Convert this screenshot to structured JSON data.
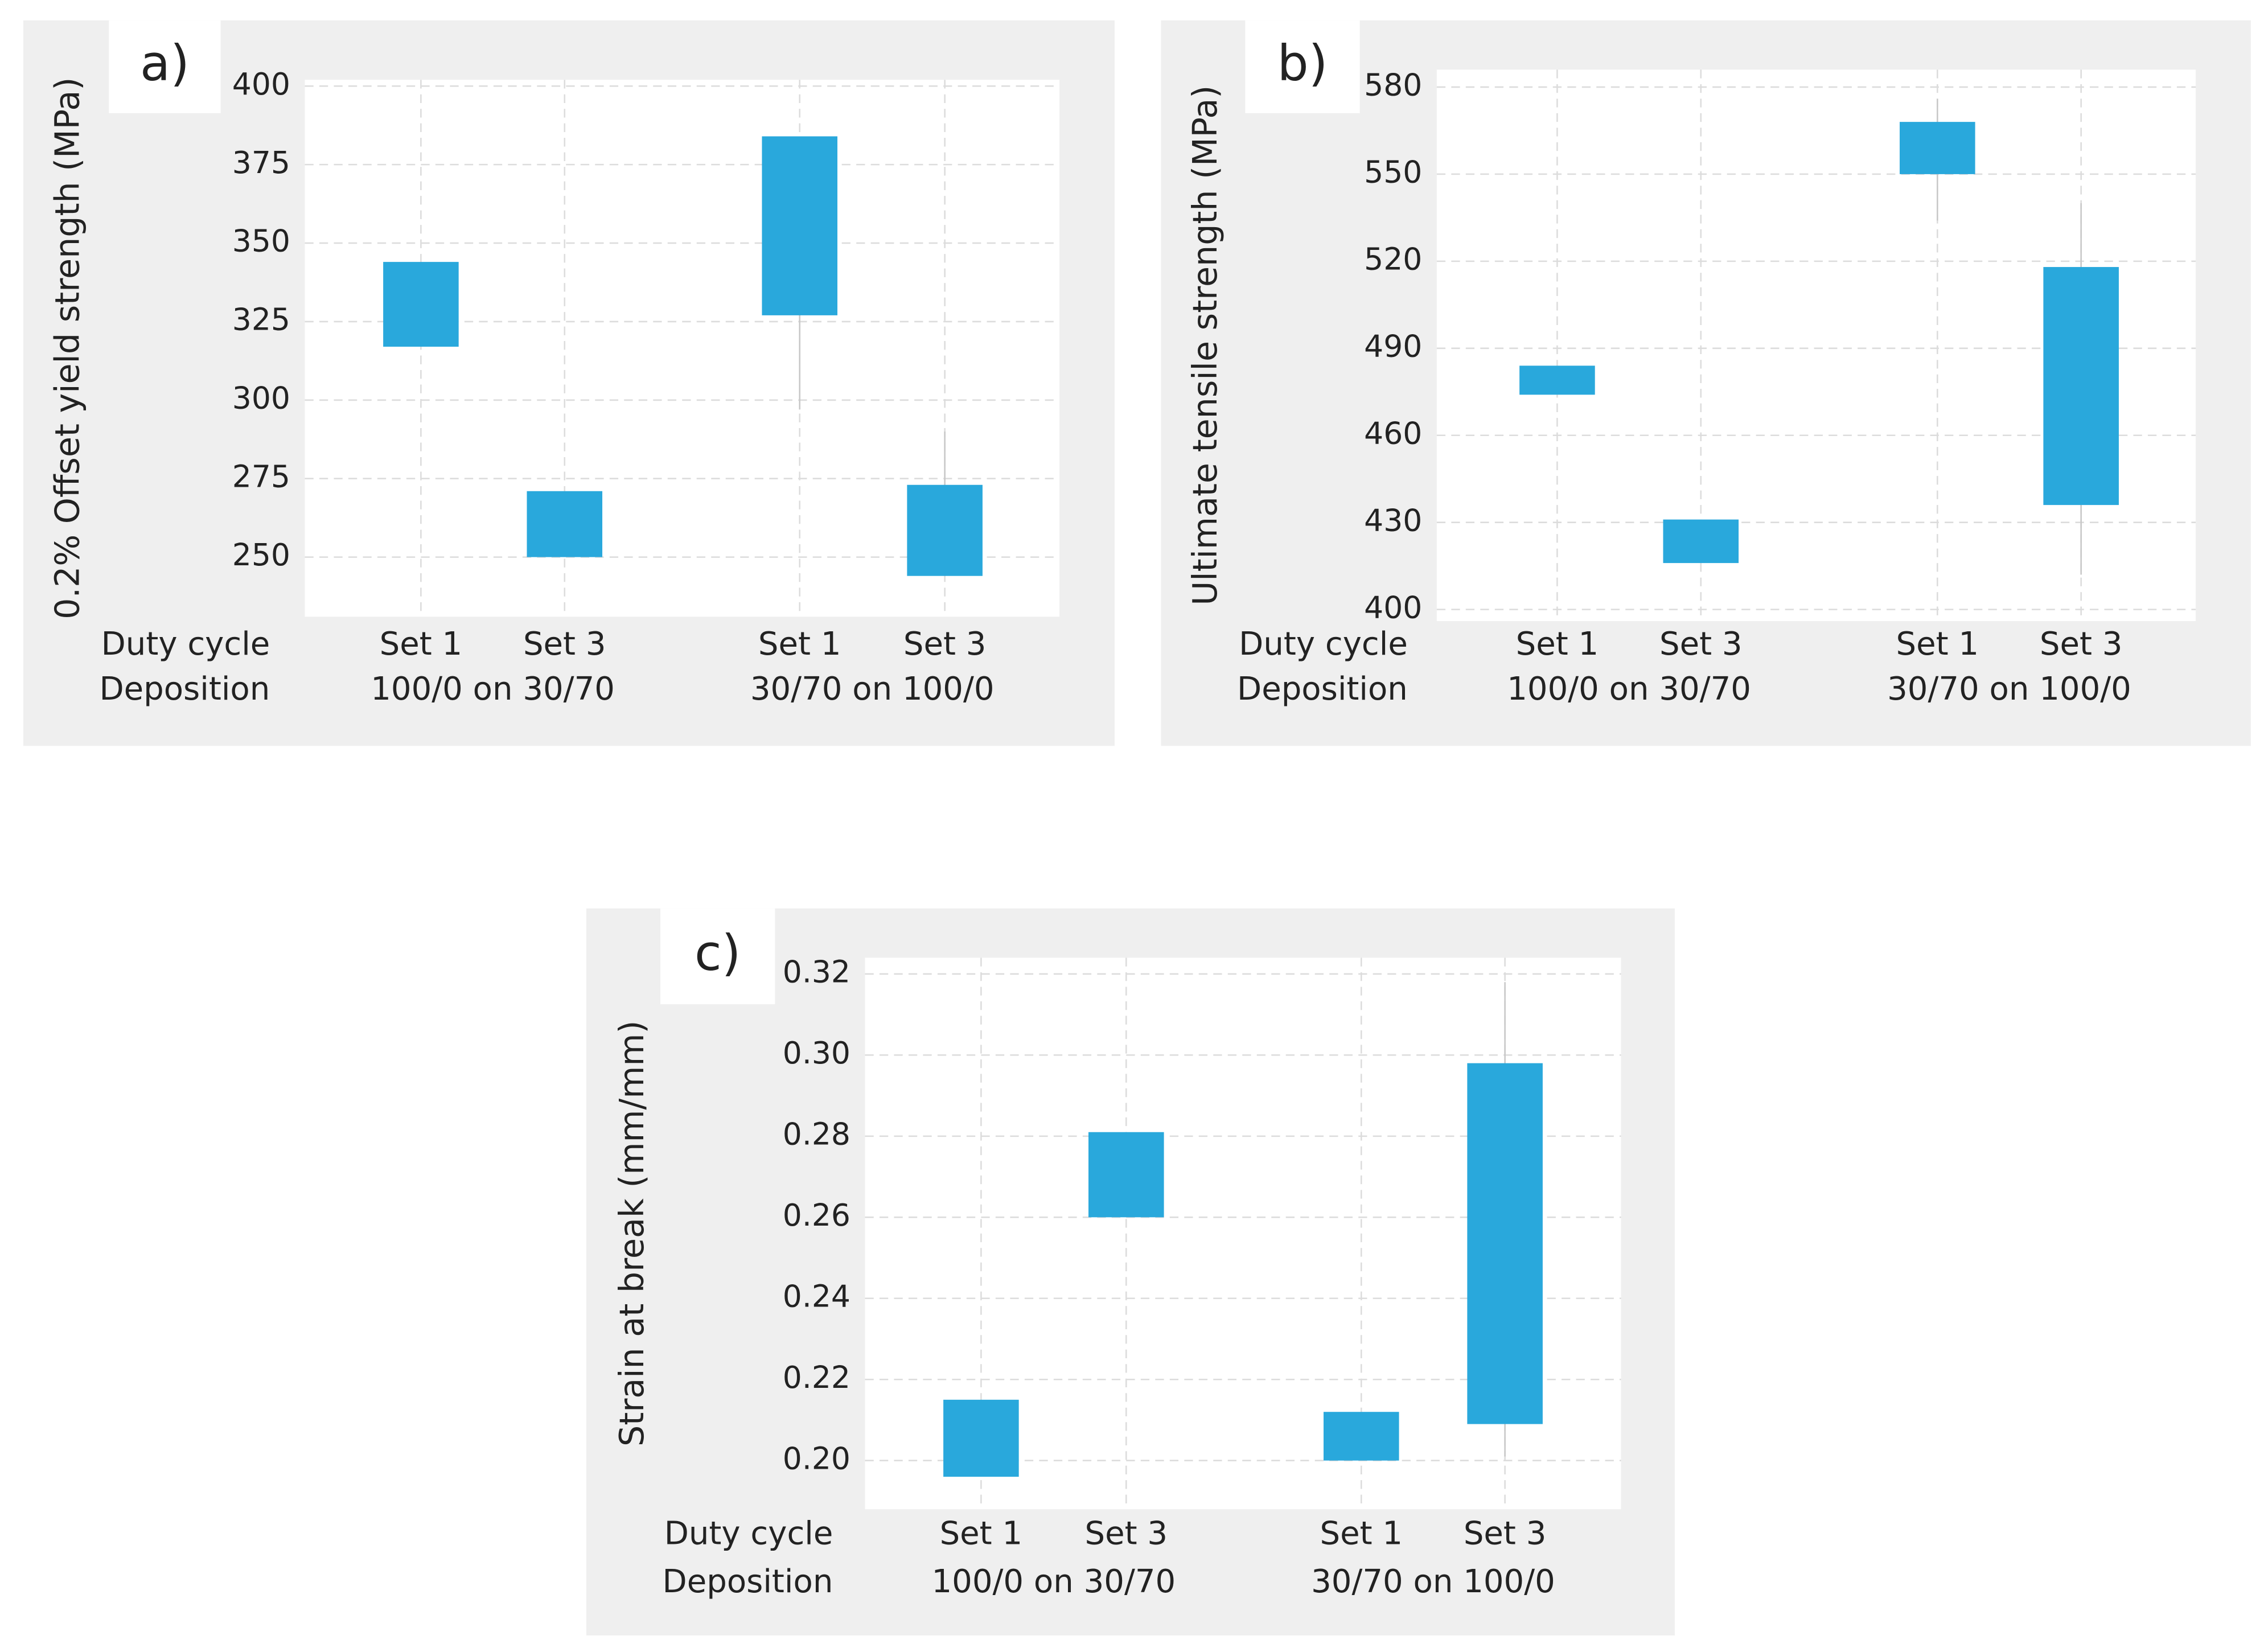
{
  "chart_data": [
    {
      "type": "range-bar",
      "label": "a)",
      "ylabel": "0.2% Offset yield strength (MPa)",
      "row_labels": [
        "Duty cycle",
        "Deposition"
      ],
      "categories": [
        "Set 1",
        "Set 3",
        "Set 1",
        "Set 3"
      ],
      "groups": [
        "100/0 on 30/70",
        "30/70 on 100/0"
      ],
      "values": [
        [
          317,
          344
        ],
        [
          250,
          271
        ],
        [
          327,
          384
        ],
        [
          244,
          273
        ]
      ],
      "whiskers": [
        null,
        null,
        [
          297,
          384
        ],
        [
          244,
          290
        ]
      ],
      "color": "#29a8dc",
      "ylim": [
        231,
        402
      ],
      "yticks": [
        250,
        275,
        300,
        325,
        350,
        375,
        400
      ],
      "grid": true
    },
    {
      "type": "range-bar",
      "label": "b)",
      "ylabel": "Ultimate tensile strength (MPa)",
      "row_labels": [
        "Duty cycle",
        "Deposition"
      ],
      "categories": [
        "Set 1",
        "Set 3",
        "Set 1",
        "Set 3"
      ],
      "groups": [
        "100/0 on 30/70",
        "30/70 on 100/0"
      ],
      "values": [
        [
          474,
          484
        ],
        [
          416,
          431
        ],
        [
          550,
          568
        ],
        [
          436,
          518
        ]
      ],
      "whiskers": [
        null,
        null,
        [
          534,
          576
        ],
        [
          412,
          540
        ]
      ],
      "color": "#29a8dc",
      "ylim": [
        396,
        586
      ],
      "yticks": [
        400,
        430,
        460,
        490,
        520,
        550,
        580
      ],
      "grid": true
    },
    {
      "type": "range-bar",
      "label": "c)",
      "ylabel": "Strain at break (mm/mm)",
      "row_labels": [
        "Duty cycle",
        "Deposition"
      ],
      "categories": [
        "Set 1",
        "Set 3",
        "Set 1",
        "Set 3"
      ],
      "groups": [
        "100/0 on 30/70",
        "30/70 on 100/0"
      ],
      "values": [
        [
          0.196,
          0.215
        ],
        [
          0.26,
          0.281
        ],
        [
          0.2,
          0.212
        ],
        [
          0.209,
          0.298
        ]
      ],
      "whiskers": [
        null,
        null,
        null,
        [
          0.201,
          0.318
        ]
      ],
      "color": "#29a8dc",
      "ylim": [
        0.188,
        0.324
      ],
      "yticks": [
        {
          "value": 0.2,
          "label": "0.20"
        },
        0.22,
        0.24,
        0.26,
        0.28,
        {
          "value": 0.3,
          "label": "0.30"
        },
        0.32
      ],
      "grid": true
    }
  ]
}
